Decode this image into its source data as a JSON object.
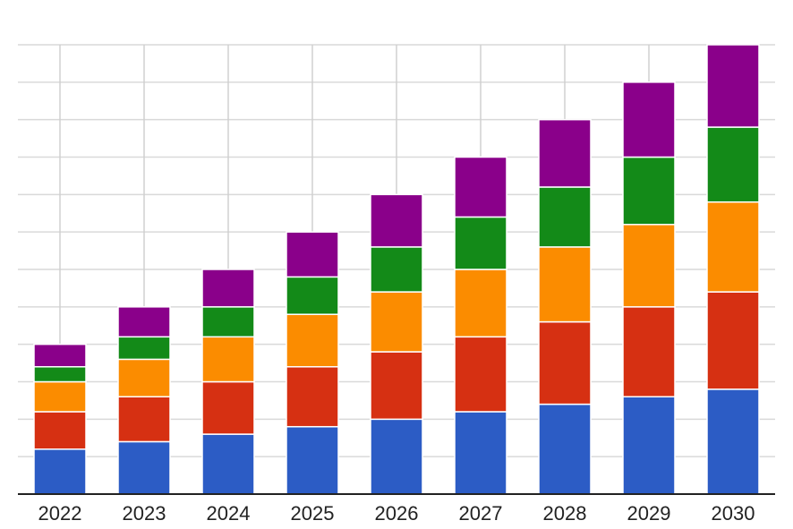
{
  "chart_data": {
    "type": "bar",
    "stacked": true,
    "title": "",
    "xlabel": "",
    "ylabel": "",
    "categories": [
      "2022",
      "2023",
      "2024",
      "2025",
      "2026",
      "2027",
      "2028",
      "2029",
      "2030"
    ],
    "ylim": [
      0,
      12
    ],
    "grid": true,
    "legend": "none",
    "series": [
      {
        "color": "#2c5cc5",
        "values": [
          1.2,
          1.4,
          1.6,
          1.8,
          2.0,
          2.2,
          2.4,
          2.6,
          2.8
        ]
      },
      {
        "color": "#d63012",
        "values": [
          1.0,
          1.2,
          1.4,
          1.6,
          1.8,
          2.0,
          2.2,
          2.4,
          2.6
        ]
      },
      {
        "color": "#fb8c00",
        "values": [
          0.8,
          1.0,
          1.2,
          1.4,
          1.6,
          1.8,
          2.0,
          2.2,
          2.4
        ]
      },
      {
        "color": "#138a18",
        "values": [
          0.4,
          0.6,
          0.8,
          1.0,
          1.2,
          1.4,
          1.6,
          1.8,
          2.0
        ]
      },
      {
        "color": "#8a008a",
        "values": [
          0.6,
          0.8,
          1.0,
          1.2,
          1.4,
          1.6,
          1.8,
          2.0,
          2.2
        ]
      }
    ]
  }
}
